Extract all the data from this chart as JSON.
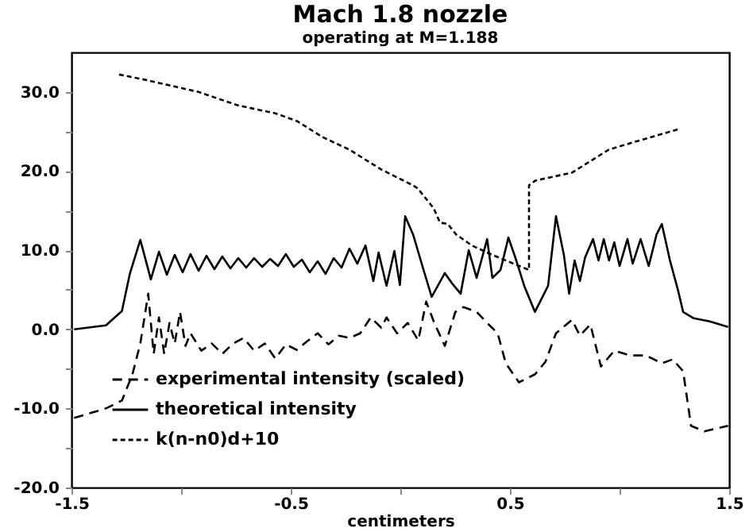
{
  "chart_data": {
    "type": "line",
    "title": "Mach 1.8 nozzle",
    "subtitle": "operating at M=1.188",
    "xlabel": "centimeters",
    "xlim": [
      -1.5,
      1.5
    ],
    "xticks": [
      -1.5,
      {
        "value": -1.0,
        "label": null
      },
      -0.5,
      {
        "value": 0.0,
        "label": null
      },
      0.5,
      {
        "value": 1.0,
        "label": null
      },
      1.5
    ],
    "ylim": [
      -20,
      35
    ],
    "yticks": [
      {
        "value": -20,
        "label": "-20.0"
      },
      {
        "value": -15,
        "label": null
      },
      {
        "value": -10,
        "label": "-10.0"
      },
      {
        "value": -5,
        "label": null
      },
      {
        "value": 0,
        "label": "0.0"
      },
      {
        "value": 5,
        "label": null
      },
      {
        "value": 10,
        "label": "10.0"
      },
      {
        "value": 15,
        "label": null
      },
      {
        "value": 20,
        "label": "20.0"
      },
      {
        "value": 25,
        "label": null
      },
      {
        "value": 30,
        "label": "30.0"
      }
    ],
    "grid": false,
    "legend": "bottom left",
    "marker": "none",
    "series": [
      {
        "name": "experimental intensity (scaled)",
        "color": "#000000",
        "line_style": "dashed",
        "x": [
          -1.488,
          -1.415,
          -1.343,
          -1.27,
          -1.222,
          -1.186,
          -1.15,
          -1.125,
          -1.101,
          -1.077,
          -1.053,
          -1.029,
          -1.005,
          -0.98,
          -0.957,
          -0.908,
          -0.86,
          -0.812,
          -0.763,
          -0.715,
          -0.667,
          -0.618,
          -0.57,
          -0.522,
          -0.473,
          -0.425,
          -0.377,
          -0.328,
          -0.28,
          -0.232,
          -0.183,
          -0.135,
          -0.087,
          -0.063,
          -0.015,
          0.034,
          0.082,
          0.118,
          0.155,
          0.203,
          0.251,
          0.288,
          0.348,
          0.396,
          0.444,
          0.481,
          0.541,
          0.614,
          0.662,
          0.71,
          0.783,
          0.819,
          0.867,
          0.915,
          0.976,
          1.048,
          1.121,
          1.193,
          1.242,
          1.29,
          1.326,
          1.387,
          1.447,
          1.495
        ],
        "values": [
          -11.2,
          -10.6,
          -10,
          -9,
          -5.7,
          -1.8,
          4.5,
          -3.1,
          1.5,
          -3.1,
          0.8,
          -1.8,
          2.2,
          -2.1,
          -0.5,
          -2.7,
          -1.8,
          -3.1,
          -1.8,
          -1.1,
          -2.7,
          -1.8,
          -3.7,
          -1.9,
          -2.6,
          -1.5,
          -0.5,
          -1.9,
          -0.8,
          -1.1,
          -0.5,
          1.5,
          0.2,
          1.5,
          -0.5,
          0.8,
          -1.4,
          3.5,
          0.8,
          -2.1,
          2.2,
          2.8,
          2.2,
          0.8,
          -0.5,
          -4.3,
          -6.7,
          -5.7,
          -4.1,
          -0.5,
          1.2,
          -0.8,
          0.6,
          -4.7,
          -2.7,
          -3.3,
          -3.3,
          -4.3,
          -3.8,
          -5.3,
          -12.2,
          -12.9,
          -12.5,
          -12.2
        ]
      },
      {
        "name": "theoretical intensity",
        "color": "#000000",
        "line_style": "solid",
        "x": [
          -1.488,
          -1.343,
          -1.27,
          -1.234,
          -1.186,
          -1.138,
          -1.101,
          -1.065,
          -1.029,
          -0.993,
          -0.957,
          -0.92,
          -0.884,
          -0.848,
          -0.812,
          -0.775,
          -0.739,
          -0.703,
          -0.667,
          -0.63,
          -0.594,
          -0.558,
          -0.522,
          -0.486,
          -0.449,
          -0.413,
          -0.377,
          -0.341,
          -0.304,
          -0.268,
          -0.232,
          -0.196,
          -0.159,
          -0.123,
          -0.099,
          -0.063,
          -0.027,
          -0.002,
          0.022,
          0.058,
          0.106,
          0.143,
          0.203,
          0.239,
          0.275,
          0.312,
          0.348,
          0.396,
          0.42,
          0.457,
          0.493,
          0.529,
          0.565,
          0.614,
          0.674,
          0.71,
          0.746,
          0.77,
          0.795,
          0.819,
          0.843,
          0.879,
          0.904,
          0.928,
          0.952,
          0.976,
          1.0,
          1.036,
          1.06,
          1.096,
          1.133,
          1.169,
          1.193,
          1.23,
          1.266,
          1.29,
          1.338,
          1.411,
          1.495
        ],
        "values": [
          0,
          0.5,
          2.3,
          7,
          11.3,
          6.3,
          9.8,
          6.9,
          9.4,
          7.2,
          9.5,
          7.4,
          9.3,
          7.6,
          9.2,
          7.7,
          9.0,
          7.8,
          9.0,
          7.9,
          8.9,
          8.0,
          9.5,
          7.9,
          8.8,
          7.2,
          8.6,
          7.0,
          9.0,
          7.8,
          10.2,
          8.3,
          10.6,
          6.1,
          9.7,
          5.5,
          9.9,
          5.6,
          14.3,
          12,
          7.5,
          4.1,
          7.1,
          5.7,
          4.5,
          10,
          6.5,
          11.4,
          6.5,
          7.5,
          11.6,
          8.7,
          5.5,
          2.2,
          5.5,
          14.3,
          9.4,
          4.5,
          8.7,
          6.1,
          9.1,
          11.4,
          8.7,
          11.4,
          8.7,
          11.0,
          8.0,
          11.4,
          8.3,
          11.4,
          8.0,
          12,
          13.3,
          8.7,
          5,
          2.2,
          1.4,
          1.0,
          0.3
        ]
      },
      {
        "name": "k(n-n0)d+10",
        "color": "#000000",
        "line_style": "dotted",
        "x": [
          -1.283,
          -1.174,
          -0.92,
          -0.74,
          -0.57,
          -0.47,
          -0.355,
          -0.232,
          -0.087,
          0.058,
          0.08,
          0.152,
          0.181,
          0.217,
          0.254,
          0.326,
          0.42,
          0.587,
          0.587,
          0.616,
          0.783,
          0.95,
          1.07,
          1.27
        ],
        "values": [
          32.2,
          31.6,
          30.0,
          28.3,
          27.3,
          26.3,
          24.3,
          22.7,
          20.2,
          18.2,
          17.8,
          15.3,
          13.5,
          13.3,
          12.0,
          10.6,
          9.4,
          7.5,
          18.2,
          18.8,
          19.8,
          22.7,
          23.7,
          25.3
        ]
      }
    ]
  }
}
